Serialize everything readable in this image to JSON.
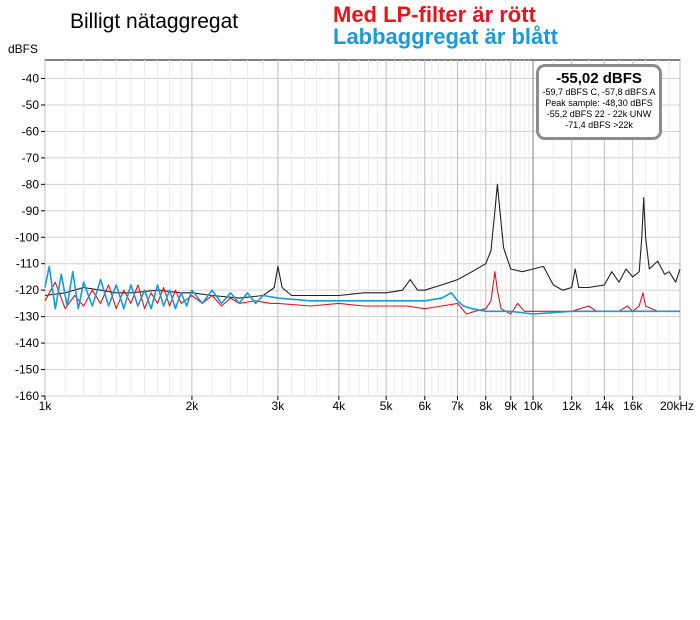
{
  "chart_data": {
    "type": "line",
    "title": "Billigt nätaggregat",
    "notes": [
      "Med LP-filter är rött",
      "Labbaggregat är blått"
    ],
    "ylabel": "dBFS",
    "xscale": "log",
    "xlim": [
      1000,
      20000
    ],
    "ylim": [
      -160,
      -33
    ],
    "x_ticks": [
      {
        "v": 1000,
        "label": "1k"
      },
      {
        "v": 2000,
        "label": "2k"
      },
      {
        "v": 3000,
        "label": "3k"
      },
      {
        "v": 4000,
        "label": "4k"
      },
      {
        "v": 5000,
        "label": "5k"
      },
      {
        "v": 6000,
        "label": "6k"
      },
      {
        "v": 7000,
        "label": "7k"
      },
      {
        "v": 8000,
        "label": "8k"
      },
      {
        "v": 9000,
        "label": "9k"
      },
      {
        "v": 10000,
        "label": "10k"
      },
      {
        "v": 12000,
        "label": "12k"
      },
      {
        "v": 14000,
        "label": "14k"
      },
      {
        "v": 16000,
        "label": "16k"
      },
      {
        "v": 20000,
        "label": "20kHz"
      }
    ],
    "y_ticks": [
      -40,
      -50,
      -60,
      -70,
      -80,
      -90,
      -100,
      -110,
      -120,
      -130,
      -140,
      -150,
      -160
    ],
    "grid": true,
    "series": [
      {
        "color": "#222222",
        "points": [
          [
            1000,
            -122
          ],
          [
            1100,
            -121
          ],
          [
            1200,
            -119
          ],
          [
            1300,
            -120
          ],
          [
            1400,
            -121
          ],
          [
            1500,
            -121
          ],
          [
            1700,
            -120
          ],
          [
            1900,
            -121
          ],
          [
            2000,
            -121
          ],
          [
            2200,
            -122
          ],
          [
            2500,
            -123
          ],
          [
            2800,
            -122
          ],
          [
            2950,
            -119
          ],
          [
            3000,
            -111
          ],
          [
            3060,
            -119
          ],
          [
            3200,
            -122
          ],
          [
            3500,
            -122
          ],
          [
            4000,
            -122
          ],
          [
            4500,
            -121
          ],
          [
            5000,
            -121
          ],
          [
            5400,
            -120
          ],
          [
            5600,
            -116
          ],
          [
            5800,
            -120
          ],
          [
            6000,
            -120
          ],
          [
            6500,
            -118
          ],
          [
            7000,
            -116
          ],
          [
            7500,
            -113
          ],
          [
            8000,
            -110
          ],
          [
            8200,
            -105
          ],
          [
            8350,
            -90
          ],
          [
            8450,
            -80
          ],
          [
            8550,
            -90
          ],
          [
            8700,
            -104
          ],
          [
            9000,
            -112
          ],
          [
            9500,
            -113
          ],
          [
            10000,
            -112
          ],
          [
            10500,
            -111
          ],
          [
            11000,
            -118
          ],
          [
            11500,
            -120
          ],
          [
            12000,
            -119
          ],
          [
            12200,
            -112
          ],
          [
            12400,
            -119
          ],
          [
            13000,
            -119
          ],
          [
            14000,
            -118
          ],
          [
            14500,
            -113
          ],
          [
            15000,
            -117
          ],
          [
            15500,
            -112
          ],
          [
            16000,
            -115
          ],
          [
            16500,
            -113
          ],
          [
            16700,
            -100
          ],
          [
            16850,
            -85
          ],
          [
            17000,
            -100
          ],
          [
            17300,
            -112
          ],
          [
            18000,
            -109
          ],
          [
            18600,
            -114
          ],
          [
            19000,
            -113
          ],
          [
            19600,
            -117
          ],
          [
            20000,
            -112
          ]
        ]
      },
      {
        "color": "#e0141c",
        "points": [
          [
            1000,
            -124
          ],
          [
            1050,
            -117
          ],
          [
            1100,
            -127
          ],
          [
            1150,
            -122
          ],
          [
            1200,
            -126
          ],
          [
            1250,
            -120
          ],
          [
            1300,
            -125
          ],
          [
            1350,
            -118
          ],
          [
            1400,
            -127
          ],
          [
            1450,
            -120
          ],
          [
            1500,
            -125
          ],
          [
            1550,
            -118
          ],
          [
            1600,
            -127
          ],
          [
            1650,
            -121
          ],
          [
            1700,
            -125
          ],
          [
            1750,
            -119
          ],
          [
            1800,
            -126
          ],
          [
            1850,
            -120
          ],
          [
            1900,
            -125
          ],
          [
            2000,
            -122
          ],
          [
            2100,
            -125
          ],
          [
            2200,
            -122
          ],
          [
            2300,
            -126
          ],
          [
            2400,
            -123
          ],
          [
            2500,
            -125
          ],
          [
            2700,
            -124
          ],
          [
            2900,
            -125
          ],
          [
            3000,
            -125
          ],
          [
            3500,
            -126
          ],
          [
            4000,
            -125
          ],
          [
            4500,
            -126
          ],
          [
            5000,
            -126
          ],
          [
            5500,
            -126
          ],
          [
            6000,
            -127
          ],
          [
            6500,
            -126
          ],
          [
            7000,
            -125
          ],
          [
            7300,
            -129
          ],
          [
            7600,
            -128
          ],
          [
            8000,
            -127
          ],
          [
            8200,
            -124
          ],
          [
            8350,
            -113
          ],
          [
            8450,
            -120
          ],
          [
            8600,
            -127
          ],
          [
            9000,
            -129
          ],
          [
            9300,
            -125
          ],
          [
            9600,
            -128
          ],
          [
            10000,
            -128
          ],
          [
            12000,
            -128
          ],
          [
            13000,
            -126
          ],
          [
            13500,
            -128
          ],
          [
            15000,
            -128
          ],
          [
            15600,
            -126
          ],
          [
            16000,
            -128
          ],
          [
            16500,
            -126
          ],
          [
            16800,
            -121
          ],
          [
            17000,
            -126
          ],
          [
            18000,
            -128
          ],
          [
            20000,
            -128
          ]
        ]
      },
      {
        "color": "#1a9ad6",
        "points": [
          [
            1000,
            -119
          ],
          [
            1020,
            -111
          ],
          [
            1050,
            -127
          ],
          [
            1080,
            -114
          ],
          [
            1110,
            -126
          ],
          [
            1140,
            -113
          ],
          [
            1170,
            -127
          ],
          [
            1200,
            -117
          ],
          [
            1250,
            -126
          ],
          [
            1300,
            -116
          ],
          [
            1350,
            -126
          ],
          [
            1400,
            -118
          ],
          [
            1450,
            -127
          ],
          [
            1500,
            -118
          ],
          [
            1550,
            -126
          ],
          [
            1600,
            -120
          ],
          [
            1650,
            -127
          ],
          [
            1700,
            -118
          ],
          [
            1750,
            -126
          ],
          [
            1800,
            -120
          ],
          [
            1850,
            -127
          ],
          [
            1900,
            -121
          ],
          [
            1950,
            -126
          ],
          [
            2000,
            -120
          ],
          [
            2100,
            -125
          ],
          [
            2200,
            -120
          ],
          [
            2300,
            -125
          ],
          [
            2400,
            -121
          ],
          [
            2500,
            -125
          ],
          [
            2600,
            -121
          ],
          [
            2700,
            -125
          ],
          [
            2800,
            -122
          ],
          [
            3000,
            -123
          ],
          [
            3500,
            -124
          ],
          [
            4000,
            -124
          ],
          [
            4500,
            -124
          ],
          [
            5000,
            -124
          ],
          [
            5500,
            -124
          ],
          [
            6000,
            -124
          ],
          [
            6500,
            -123
          ],
          [
            6800,
            -121
          ],
          [
            7000,
            -124
          ],
          [
            7200,
            -126
          ],
          [
            7500,
            -127
          ],
          [
            8000,
            -128
          ],
          [
            9000,
            -128
          ],
          [
            10000,
            -129
          ],
          [
            12000,
            -128
          ],
          [
            15000,
            -128
          ],
          [
            18000,
            -128
          ],
          [
            20000,
            -128
          ]
        ]
      }
    ],
    "stats_box": {
      "headline": "-55,02 dBFS",
      "lines": [
        "-59,7 dBFS C, -57,8 dBFS A",
        "Peak sample: -48,30 dBFS",
        "-55,2 dBFS 22 - 22k UNW",
        "-71,4 dBFS >22k"
      ]
    }
  }
}
